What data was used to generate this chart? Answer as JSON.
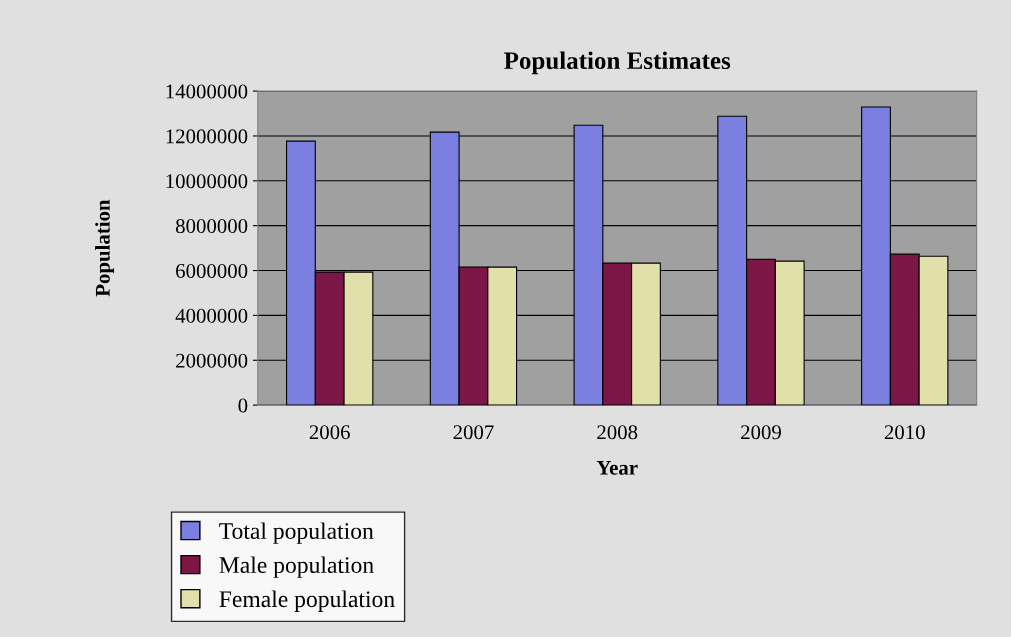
{
  "chart_data": {
    "type": "bar",
    "title": "Population Estimates",
    "xlabel": "Year",
    "ylabel": "Population",
    "categories": [
      "2006",
      "2007",
      "2008",
      "2009",
      "2010"
    ],
    "series": [
      {
        "name": "Total population",
        "color": "#7b7fe0",
        "values": [
          11770000,
          12170000,
          12480000,
          12880000,
          13290000
        ]
      },
      {
        "name": "Male population",
        "color": "#7b1646",
        "values": [
          5930000,
          6150000,
          6330000,
          6500000,
          6730000
        ]
      },
      {
        "name": "Female population",
        "color": "#e2e0aa",
        "values": [
          5930000,
          6150000,
          6330000,
          6420000,
          6640000
        ]
      }
    ],
    "ylim": [
      0,
      14000000
    ],
    "yticks": [
      0,
      2000000,
      4000000,
      6000000,
      8000000,
      10000000,
      12000000,
      14000000
    ],
    "grid": "y",
    "legend": "bottom left"
  }
}
